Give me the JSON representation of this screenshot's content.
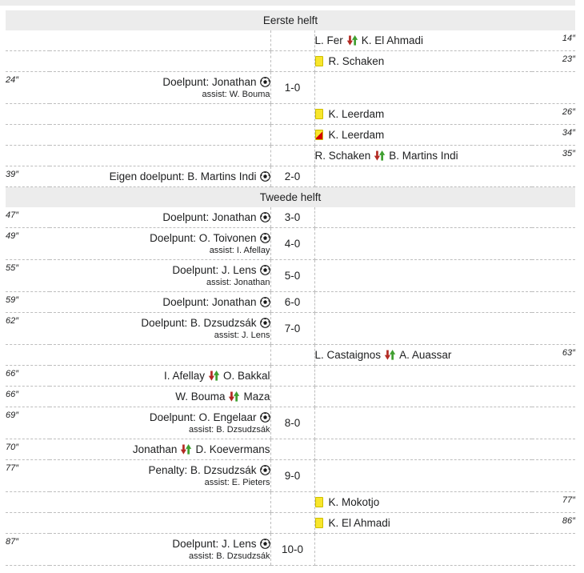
{
  "table": {
    "first_half_label": "Eerste helft",
    "second_half_label": "Tweede helft",
    "rows": [
      {
        "type": "header",
        "label": "Eerste helft"
      },
      {
        "type": "sub",
        "side": "away",
        "minute": "14″",
        "out": "L. Fer",
        "in": "K. El Ahmadi"
      },
      {
        "type": "yellow",
        "side": "away",
        "minute": "23″",
        "player": "R. Schaken"
      },
      {
        "type": "goal",
        "side": "home",
        "minute": "24″",
        "label": "Doelpunt: Jonathan",
        "assist": "assist: W. Bouma",
        "score": "1-0"
      },
      {
        "type": "yellow",
        "side": "away",
        "minute": "26″",
        "player": "K. Leerdam"
      },
      {
        "type": "yellowred",
        "side": "away",
        "minute": "34″",
        "player": "K. Leerdam"
      },
      {
        "type": "sub",
        "side": "away",
        "minute": "35″",
        "out": "R. Schaken",
        "in": "B. Martins Indi"
      },
      {
        "type": "goal",
        "side": "home",
        "minute": "39″",
        "label": "Eigen doelpunt: B. Martins Indi",
        "score": "2-0"
      },
      {
        "type": "header",
        "label": "Tweede helft"
      },
      {
        "type": "goal",
        "side": "home",
        "minute": "47″",
        "label": "Doelpunt: Jonathan",
        "score": "3-0"
      },
      {
        "type": "goal",
        "side": "home",
        "minute": "49″",
        "label": "Doelpunt: O. Toivonen",
        "assist": "assist: I. Afellay",
        "score": "4-0"
      },
      {
        "type": "goal",
        "side": "home",
        "minute": "55″",
        "label": "Doelpunt: J. Lens",
        "assist": "assist: Jonathan",
        "score": "5-0"
      },
      {
        "type": "goal",
        "side": "home",
        "minute": "59″",
        "label": "Doelpunt: Jonathan",
        "score": "6-0"
      },
      {
        "type": "goal",
        "side": "home",
        "minute": "62″",
        "label": "Doelpunt: B. Dzsudzsák",
        "assist": "assist: J. Lens",
        "score": "7-0"
      },
      {
        "type": "sub",
        "side": "away",
        "minute": "63″",
        "out": "L. Castaignos",
        "in": "A. Auassar"
      },
      {
        "type": "sub",
        "side": "home",
        "minute": "66″",
        "out": "I. Afellay",
        "in": "O. Bakkal"
      },
      {
        "type": "sub",
        "side": "home",
        "minute": "66″",
        "out": "W. Bouma",
        "in": "Maza"
      },
      {
        "type": "goal",
        "side": "home",
        "minute": "69″",
        "label": "Doelpunt: O. Engelaar",
        "assist": "assist: B. Dzsudzsák",
        "score": "8-0"
      },
      {
        "type": "sub",
        "side": "home",
        "minute": "70″",
        "out": "Jonathan",
        "in": "D. Koevermans"
      },
      {
        "type": "goal",
        "side": "home",
        "minute": "77″",
        "label": "Penalty: B. Dzsudzsák",
        "assist": "assist: E. Pieters",
        "score": "9-0"
      },
      {
        "type": "yellow",
        "side": "away",
        "minute": "77″",
        "player": "K. Mokotjo"
      },
      {
        "type": "yellow",
        "side": "away",
        "minute": "86″",
        "player": "K. El Ahmadi"
      },
      {
        "type": "goal",
        "side": "home",
        "minute": "87″",
        "label": "Doelpunt: J. Lens",
        "assist": "assist: B. Dzsudzsák",
        "score": "10-0"
      }
    ]
  },
  "icons": {
    "goal": "soccer-ball",
    "substitution": "red-down-arrow-green-up-arrow",
    "booking": "yellow-card",
    "second_booking": "yellow-red-card"
  },
  "colors": {
    "text": "#202122",
    "header_bg": "#ececec",
    "border": "#bdbdbd",
    "yellow_card": "#f8e62c",
    "red_card": "#d40000",
    "sub_out": "#b32b24",
    "sub_in": "#3f9f30",
    "ball": "#1a1a1a"
  }
}
